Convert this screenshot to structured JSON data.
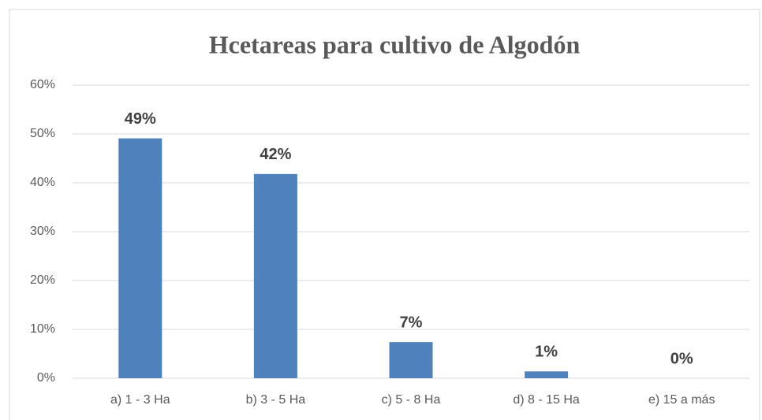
{
  "chart_data": {
    "type": "bar",
    "title": "Hcetareas para cultivo de Algodón",
    "categories": [
      "a) 1 - 3 Ha",
      "b) 3 - 5 Ha",
      "c) 5 - 8 Ha",
      "d) 8 - 15 Ha",
      "e) 15 a más"
    ],
    "values": [
      49.1,
      41.8,
      7.4,
      1.4,
      0
    ],
    "value_labels": [
      "49%",
      "42%",
      "7%",
      "1%",
      "0%"
    ],
    "color": "#4f81bd",
    "ylim": [
      0,
      60
    ],
    "yticks": [
      {
        "value": 0,
        "label": "0%"
      },
      {
        "value": 10,
        "label": "10%"
      },
      {
        "value": 20,
        "label": "20%"
      },
      {
        "value": 30,
        "label": "30%"
      },
      {
        "value": 40,
        "label": "40%"
      },
      {
        "value": 50,
        "label": "50%"
      },
      {
        "value": 60,
        "label": "60%"
      }
    ],
    "grid": true
  }
}
